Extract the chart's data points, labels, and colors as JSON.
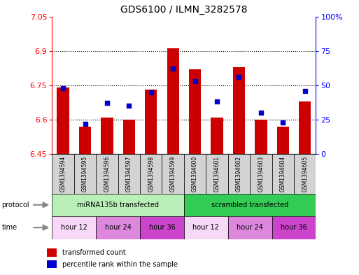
{
  "title": "GDS6100 / ILMN_3282578",
  "samples": [
    "GSM1394594",
    "GSM1394595",
    "GSM1394596",
    "GSM1394597",
    "GSM1394598",
    "GSM1394599",
    "GSM1394600",
    "GSM1394601",
    "GSM1394602",
    "GSM1394603",
    "GSM1394604",
    "GSM1394605"
  ],
  "transformed_counts": [
    6.74,
    6.57,
    6.61,
    6.6,
    6.73,
    6.91,
    6.82,
    6.61,
    6.83,
    6.6,
    6.57,
    6.68
  ],
  "percentile_ranks": [
    48,
    22,
    37,
    35,
    45,
    62,
    53,
    38,
    56,
    30,
    23,
    46
  ],
  "ylim_left": [
    6.45,
    7.05
  ],
  "ylim_right": [
    0,
    100
  ],
  "yticks_left": [
    6.45,
    6.6,
    6.75,
    6.9,
    7.05
  ],
  "yticks_right": [
    0,
    25,
    50,
    75,
    100
  ],
  "ytick_labels_left": [
    "6.45",
    "6.6",
    "6.75",
    "6.9",
    "7.05"
  ],
  "ytick_labels_right": [
    "0",
    "25",
    "50",
    "75",
    "100%"
  ],
  "bar_color": "#cc0000",
  "dot_color": "#0000cc",
  "bar_bottom": 6.45,
  "bar_width": 0.55,
  "protocol_groups": [
    {
      "label": "miRNA135b transfected",
      "start": 0,
      "end": 6,
      "color": "#b8f0b8"
    },
    {
      "label": "scrambled transfected",
      "start": 6,
      "end": 12,
      "color": "#33cc55"
    }
  ],
  "time_groups": [
    {
      "label": "hour 12",
      "start": 0,
      "end": 2,
      "color": "#f8d8f8"
    },
    {
      "label": "hour 24",
      "start": 2,
      "end": 4,
      "color": "#dd88dd"
    },
    {
      "label": "hour 36",
      "start": 4,
      "end": 6,
      "color": "#cc44cc"
    },
    {
      "label": "hour 12",
      "start": 6,
      "end": 8,
      "color": "#f8d8f8"
    },
    {
      "label": "hour 24",
      "start": 8,
      "end": 10,
      "color": "#dd88dd"
    },
    {
      "label": "hour 36",
      "start": 10,
      "end": 12,
      "color": "#cc44cc"
    }
  ],
  "sample_bg_color": "#d3d3d3",
  "gridline_values": [
    6.6,
    6.75,
    6.9
  ],
  "fig_bg": "#ffffff"
}
